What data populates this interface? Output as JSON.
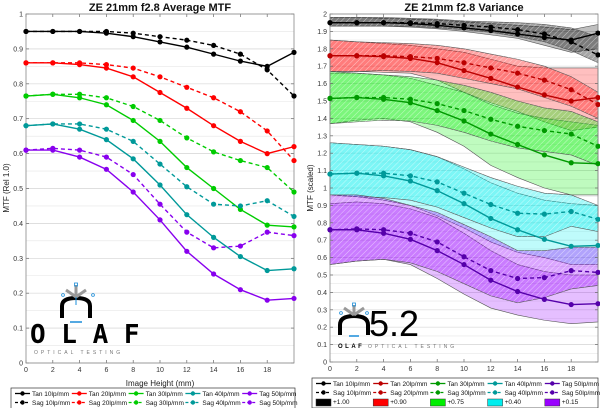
{
  "chart_data": [
    {
      "type": "line",
      "title": "ZE 21mm f2.8 Average MTF",
      "xlabel": "Image Height (mm)",
      "ylabel": "MTF (Rel 1.0)",
      "xlim": [
        0,
        20
      ],
      "ylim": [
        0,
        1
      ],
      "xticks": [
        0,
        2,
        4,
        6,
        8,
        10,
        12,
        14,
        16,
        18
      ],
      "xtick_labels": [
        "0",
        "2",
        "4",
        "6",
        "8",
        "10",
        "12",
        "14",
        "16",
        "18"
      ],
      "yticks": [
        0,
        0.1,
        0.2,
        0.3,
        0.4,
        0.5,
        0.6,
        0.7,
        0.8,
        0.9,
        1
      ],
      "ytick_labels": [
        "0",
        "0.1",
        "0.2",
        "0.3",
        "0.4",
        "0.5",
        "0.6",
        "0.7",
        "0.8",
        "0.9",
        "1"
      ],
      "grid": true,
      "x": [
        0,
        2,
        4,
        6,
        8,
        10,
        12,
        14,
        16,
        18,
        20
      ],
      "series": [
        {
          "name": "Tan 10lp/mm",
          "color": "#000000",
          "dash": false,
          "values": [
            0.95,
            0.95,
            0.95,
            0.945,
            0.935,
            0.92,
            0.905,
            0.885,
            0.865,
            0.85,
            0.89
          ]
        },
        {
          "name": "Sag 10lp/mm",
          "color": "#000000",
          "dash": true,
          "values": [
            0.95,
            0.95,
            0.95,
            0.95,
            0.945,
            0.935,
            0.925,
            0.91,
            0.885,
            0.84,
            0.765
          ]
        },
        {
          "name": "Tan 20lp/mm",
          "color": "#ff0000",
          "dash": false,
          "values": [
            0.86,
            0.86,
            0.855,
            0.845,
            0.82,
            0.775,
            0.73,
            0.68,
            0.635,
            0.6,
            0.62
          ]
        },
        {
          "name": "Sag 20lp/mm",
          "color": "#ff0000",
          "dash": true,
          "values": [
            0.86,
            0.86,
            0.86,
            0.855,
            0.845,
            0.82,
            0.79,
            0.76,
            0.72,
            0.665,
            0.58
          ]
        },
        {
          "name": "Tan 30lp/mm",
          "color": "#00cc00",
          "dash": false,
          "values": [
            0.765,
            0.77,
            0.76,
            0.74,
            0.695,
            0.635,
            0.56,
            0.5,
            0.44,
            0.395,
            0.39
          ]
        },
        {
          "name": "Sag 30lp/mm",
          "color": "#00cc00",
          "dash": true,
          "values": [
            0.765,
            0.77,
            0.77,
            0.76,
            0.735,
            0.695,
            0.645,
            0.605,
            0.58,
            0.56,
            0.49
          ]
        },
        {
          "name": "Tan 40lp/mm",
          "color": "#009999",
          "dash": false,
          "values": [
            0.68,
            0.685,
            0.67,
            0.64,
            0.585,
            0.51,
            0.425,
            0.36,
            0.305,
            0.265,
            0.27
          ]
        },
        {
          "name": "Sag 40lp/mm",
          "color": "#009999",
          "dash": true,
          "values": [
            0.68,
            0.685,
            0.685,
            0.67,
            0.635,
            0.57,
            0.505,
            0.455,
            0.45,
            0.465,
            0.42
          ]
        },
        {
          "name": "Tag 50lp/mm",
          "color": "#8800ee",
          "dash": false,
          "values": [
            0.61,
            0.61,
            0.59,
            0.555,
            0.49,
            0.41,
            0.32,
            0.255,
            0.21,
            0.18,
            0.185
          ]
        },
        {
          "name": "Sag 50lp/mm",
          "color": "#8800ee",
          "dash": true,
          "values": [
            0.61,
            0.615,
            0.61,
            0.59,
            0.54,
            0.455,
            0.375,
            0.33,
            0.335,
            0.375,
            0.365
          ]
        }
      ],
      "legend": {
        "placement": "bottom",
        "columns": 5
      }
    },
    {
      "type": "area",
      "title": "ZE 21mm f2.8 Variance",
      "xlabel": "Image Height (mm)",
      "ylabel": "MTF (scaled)",
      "xlim": [
        0,
        20
      ],
      "ylim": [
        0,
        2
      ],
      "xticks": [
        0,
        2,
        4,
        6,
        8,
        10,
        12,
        14,
        16,
        18
      ],
      "xtick_labels": [
        "0",
        "2",
        "4",
        "6",
        "8",
        "10",
        "12",
        "14",
        "16",
        "18"
      ],
      "yticks": [
        0,
        0.1,
        0.2,
        0.3,
        0.4,
        0.5,
        0.6,
        0.7,
        0.8,
        0.9,
        1,
        1.1,
        1.2,
        1.3,
        1.4,
        1.5,
        1.6,
        1.7,
        1.8,
        1.9,
        2
      ],
      "ytick_labels": [
        "0",
        "0.1",
        "0.2",
        "0.3",
        "0.4",
        "0.5",
        "0.6",
        "0.7",
        "0.8",
        "0.9",
        "1",
        "1.1",
        "1.2",
        "1.3",
        "1.4",
        "1.5",
        "1.6",
        "1.7",
        "1.8",
        "1.9",
        "2"
      ],
      "grid": true,
      "x": [
        0,
        2,
        4,
        6,
        8,
        10,
        12,
        14,
        16,
        18,
        20
      ],
      "groups": [
        {
          "offset_label": "+1.00",
          "line_color": "#000000",
          "fill_color": "#000000",
          "tan": [
            1.95,
            1.95,
            1.95,
            1.945,
            1.935,
            1.92,
            1.905,
            1.885,
            1.865,
            1.85,
            1.89
          ],
          "sag": [
            1.95,
            1.95,
            1.95,
            1.95,
            1.945,
            1.935,
            1.925,
            1.91,
            1.885,
            1.84,
            1.765
          ],
          "tan_band": {
            "upper": [
              1.98,
              1.98,
              1.975,
              1.97,
              1.965,
              1.955,
              1.945,
              1.935,
              1.925,
              1.91,
              1.94
            ],
            "lower": [
              1.93,
              1.93,
              1.93,
              1.925,
              1.915,
              1.9,
              1.88,
              1.86,
              1.82,
              1.78,
              1.8
            ]
          },
          "sag_band": {
            "upper": [
              1.98,
              1.98,
              1.98,
              1.975,
              1.97,
              1.96,
              1.955,
              1.95,
              1.94,
              1.92,
              1.87
            ],
            "lower": [
              1.93,
              1.93,
              1.93,
              1.93,
              1.92,
              1.91,
              1.895,
              1.87,
              1.84,
              1.79,
              1.72
            ]
          }
        },
        {
          "offset_label": "+0.90",
          "line_color": "#bb0000",
          "fill_color": "#ff0000",
          "tan": [
            1.76,
            1.76,
            1.755,
            1.745,
            1.72,
            1.675,
            1.63,
            1.58,
            1.535,
            1.5,
            1.52
          ],
          "sag": [
            1.76,
            1.76,
            1.76,
            1.755,
            1.745,
            1.72,
            1.69,
            1.66,
            1.62,
            1.565,
            1.48
          ],
          "tan_band": {
            "upper": [
              1.85,
              1.84,
              1.83,
              1.82,
              1.8,
              1.78,
              1.74,
              1.7,
              1.69,
              1.69,
              1.69
            ],
            "lower": [
              1.67,
              1.67,
              1.665,
              1.66,
              1.62,
              1.55,
              1.49,
              1.44,
              1.38,
              1.33,
              1.35
            ]
          },
          "sag_band": {
            "upper": [
              1.85,
              1.84,
              1.835,
              1.83,
              1.82,
              1.8,
              1.77,
              1.74,
              1.7,
              1.64,
              1.55
            ],
            "lower": [
              1.67,
              1.67,
              1.675,
              1.67,
              1.66,
              1.63,
              1.6,
              1.57,
              1.52,
              1.47,
              1.4
            ]
          }
        },
        {
          "offset_label": "+0.75",
          "line_color": "#009900",
          "fill_color": "#00ee00",
          "tan": [
            1.515,
            1.52,
            1.51,
            1.49,
            1.445,
            1.385,
            1.31,
            1.25,
            1.19,
            1.145,
            1.14
          ],
          "sag": [
            1.515,
            1.52,
            1.52,
            1.51,
            1.485,
            1.445,
            1.395,
            1.355,
            1.33,
            1.31,
            1.24
          ],
          "tan_band": {
            "upper": [
              1.66,
              1.66,
              1.65,
              1.63,
              1.59,
              1.55,
              1.48,
              1.43,
              1.4,
              1.38,
              1.36
            ],
            "lower": [
              1.37,
              1.39,
              1.4,
              1.38,
              1.32,
              1.24,
              1.13,
              1.06,
              1.0,
              0.96,
              0.96
            ]
          },
          "sag_band": {
            "upper": [
              1.67,
              1.66,
              1.65,
              1.64,
              1.62,
              1.59,
              1.55,
              1.5,
              1.46,
              1.44,
              1.38
            ],
            "lower": [
              1.37,
              1.38,
              1.39,
              1.385,
              1.36,
              1.32,
              1.27,
              1.23,
              1.21,
              1.19,
              1.13
            ]
          }
        },
        {
          "offset_label": "+0.40",
          "line_color": "#009999",
          "fill_color": "#00eeee",
          "tan": [
            1.08,
            1.085,
            1.07,
            1.04,
            0.985,
            0.91,
            0.825,
            0.76,
            0.705,
            0.665,
            0.67
          ],
          "sag": [
            1.08,
            1.085,
            1.085,
            1.07,
            1.035,
            0.97,
            0.905,
            0.855,
            0.85,
            0.865,
            0.82
          ],
          "tan_band": {
            "upper": [
              1.26,
              1.25,
              1.24,
              1.22,
              1.18,
              1.11,
              1.03,
              0.97,
              0.93,
              0.91,
              0.9
            ],
            "lower": [
              0.96,
              0.95,
              0.93,
              0.9,
              0.84,
              0.77,
              0.69,
              0.63,
              0.6,
              0.56,
              0.56
            ]
          },
          "sag_band": {
            "upper": [
              1.26,
              1.25,
              1.24,
              1.22,
              1.18,
              1.12,
              1.06,
              1.01,
              0.97,
              0.96,
              0.9
            ],
            "lower": [
              0.96,
              0.95,
              0.945,
              0.93,
              0.89,
              0.83,
              0.77,
              0.72,
              0.72,
              0.78,
              0.75
            ]
          }
        },
        {
          "offset_label": "+0.15",
          "line_color": "#5500aa",
          "fill_color": "#9900ff",
          "tan": [
            0.76,
            0.76,
            0.74,
            0.705,
            0.64,
            0.56,
            0.47,
            0.405,
            0.36,
            0.33,
            0.335
          ],
          "sag": [
            0.76,
            0.765,
            0.76,
            0.74,
            0.69,
            0.605,
            0.525,
            0.48,
            0.485,
            0.525,
            0.515
          ],
          "tan_band": {
            "upper": [
              0.91,
              0.92,
              0.91,
              0.88,
              0.83,
              0.74,
              0.64,
              0.56,
              0.52,
              0.5,
              0.5
            ],
            "lower": [
              0.56,
              0.58,
              0.59,
              0.56,
              0.48,
              0.39,
              0.31,
              0.27,
              0.24,
              0.22,
              0.23
            ]
          },
          "sag_band": {
            "upper": [
              0.96,
              0.96,
              0.94,
              0.9,
              0.86,
              0.79,
              0.72,
              0.64,
              0.64,
              0.66,
              0.66
            ],
            "lower": [
              0.56,
              0.58,
              0.59,
              0.57,
              0.52,
              0.45,
              0.38,
              0.34,
              0.37,
              0.42,
              0.44
            ]
          }
        }
      ],
      "legend": {
        "placement": "bottom",
        "columns": 5
      }
    }
  ],
  "left_legend": [
    {
      "label": "Tan 10lp/mm",
      "color": "#000000",
      "dash": false
    },
    {
      "label": "Tan 20lp/mm",
      "color": "#ff0000",
      "dash": false
    },
    {
      "label": "Tan 30lp/mm",
      "color": "#00cc00",
      "dash": false
    },
    {
      "label": "Tan 40lp/mm",
      "color": "#009999",
      "dash": false
    },
    {
      "label": "Tag 50lp/mm",
      "color": "#8800ee",
      "dash": false
    },
    {
      "label": "Sag 10lp/mm",
      "color": "#000000",
      "dash": true
    },
    {
      "label": "Sag 20lp/mm",
      "color": "#ff0000",
      "dash": true
    },
    {
      "label": "Sag 30lp/mm",
      "color": "#00cc00",
      "dash": true
    },
    {
      "label": "Sag 40lp/mm",
      "color": "#009999",
      "dash": true
    },
    {
      "label": "Sag 50lp/mm",
      "color": "#8800ee",
      "dash": true
    }
  ],
  "right_legend": [
    {
      "label": "Tan 10lp/mm",
      "color": "#000000",
      "dash": false
    },
    {
      "label": "Tan 20lp/mm",
      "color": "#bb0000",
      "dash": false
    },
    {
      "label": "Tan 30lp/mm",
      "color": "#009900",
      "dash": false
    },
    {
      "label": "Tan 40lp/mm",
      "color": "#009999",
      "dash": false
    },
    {
      "label": "Tag 50lp/mm",
      "color": "#5500aa",
      "dash": false
    },
    {
      "label": "Sag 10lp/mm",
      "color": "#000000",
      "dash": true
    },
    {
      "label": "Sag 20lp/mm",
      "color": "#bb0000",
      "dash": true
    },
    {
      "label": "Sag 30lp/mm",
      "color": "#009900",
      "dash": true
    },
    {
      "label": "Sag 40lp/mm",
      "color": "#009999",
      "dash": true
    },
    {
      "label": "Sag 50lp/mm",
      "color": "#5500aa",
      "dash": true
    },
    {
      "label": "+1.00",
      "swatch": "#000000"
    },
    {
      "label": "+0.90",
      "swatch": "#ff0000"
    },
    {
      "label": "+0.75",
      "swatch": "#00ee00"
    },
    {
      "label": "+0.40",
      "swatch": "#00eeee"
    },
    {
      "label": "+0.15",
      "swatch": "#9900ff"
    }
  ],
  "logo": {
    "letters": "O L A F",
    "subtitle": "OPTICAL TESTING",
    "version": "5.2",
    "compact_letters": "OLAF"
  }
}
